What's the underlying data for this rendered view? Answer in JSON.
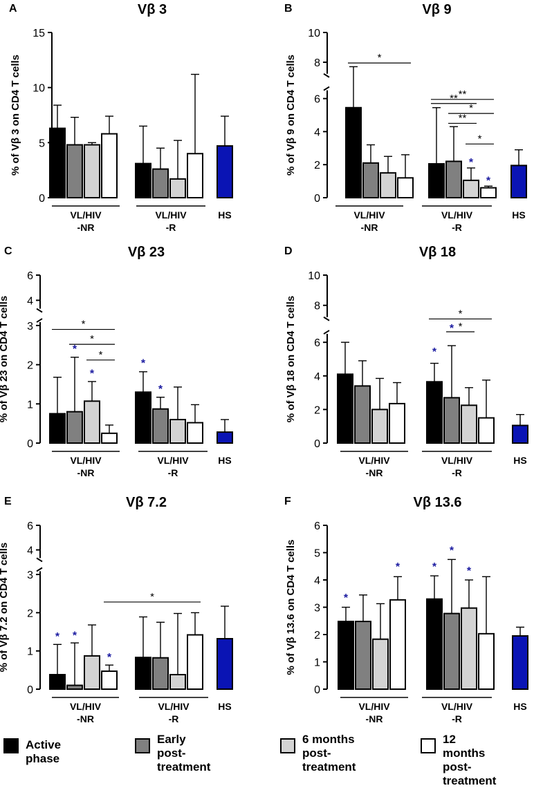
{
  "legend": {
    "items": [
      {
        "label": "Active phase",
        "color": "#000000"
      },
      {
        "label": "Early\npost-treatment",
        "color": "#808080"
      },
      {
        "label": "6 months\npost-treatment",
        "color": "#d3d3d3"
      },
      {
        "label": "12 months\npost-treatment",
        "color": "#ffffff"
      }
    ]
  },
  "colors": {
    "active": "#000000",
    "early": "#808080",
    "m6": "#d3d3d3",
    "m12": "#ffffff",
    "hs": "#0a14b4",
    "blue_star": "#1a1aa0"
  },
  "chart_data": [
    {
      "panel": "A",
      "type": "bar",
      "title": "Vβ 3",
      "ylabel": "% of Vβ 3 on CD4 T cells",
      "ylim": [
        0,
        15
      ],
      "yticks": [
        0,
        5,
        10,
        15
      ],
      "group_labels": [
        "VL/HIV\n-NR",
        "VL/HIV\n-R",
        "HS"
      ],
      "series": [
        {
          "name": "Active phase",
          "values": [
            6.3,
            3.1
          ],
          "errors": [
            8.4,
            6.5
          ]
        },
        {
          "name": "Early post-treatment",
          "values": [
            4.8,
            2.6
          ],
          "errors": [
            7.3,
            4.5
          ]
        },
        {
          "name": "6 months post-treatment",
          "values": [
            4.8,
            1.7
          ],
          "errors": [
            5.0,
            5.2
          ]
        },
        {
          "name": "12 months post-treatment",
          "values": [
            5.8,
            4.0
          ],
          "errors": [
            7.4,
            11.2
          ]
        }
      ],
      "hs": {
        "value": 4.7,
        "error": 7.4
      },
      "significance": [],
      "blue_stars": []
    },
    {
      "panel": "B",
      "type": "bar",
      "title": "Vβ 9",
      "ylabel": "% of Vβ 9 on CD4 T cells",
      "ylim": [
        0,
        10
      ],
      "yticks": [
        0,
        2,
        4,
        6,
        8,
        10
      ],
      "group_labels": [
        "VL/HIV\n-NR",
        "VL/HIV\n-R",
        "HS"
      ],
      "series": [
        {
          "name": "Active phase",
          "values": [
            5.45,
            2.05
          ],
          "errors": [
            7.7,
            5.45
          ]
        },
        {
          "name": "Early post-treatment",
          "values": [
            2.1,
            2.2
          ],
          "errors": [
            3.2,
            4.3
          ]
        },
        {
          "name": "6 months post-treatment",
          "values": [
            1.5,
            1.05
          ],
          "errors": [
            2.5,
            1.8
          ]
        },
        {
          "name": "12 months post-treatment",
          "values": [
            1.2,
            0.6
          ],
          "errors": [
            2.6,
            0.7
          ]
        }
      ],
      "hs": {
        "value": 1.95,
        "error": 2.9
      },
      "significance": [
        {
          "from": [
            0,
            0
          ],
          "to": [
            0,
            3
          ],
          "y": 7.95,
          "label": "*"
        },
        {
          "from": [
            1,
            0
          ],
          "to": [
            1,
            3
          ],
          "y": 5.95,
          "label": "**"
        },
        {
          "from": [
            1,
            0
          ],
          "to": [
            1,
            2
          ],
          "y": 5.7,
          "label": "**"
        },
        {
          "from": [
            1,
            1
          ],
          "to": [
            1,
            3
          ],
          "y": 5.1,
          "label": "*"
        },
        {
          "from": [
            1,
            1
          ],
          "to": [
            1,
            2
          ],
          "y": 4.5,
          "label": "**"
        },
        {
          "from": [
            1,
            2
          ],
          "to": [
            1,
            3
          ],
          "y": 3.25,
          "label": "*"
        }
      ],
      "blue_stars": [
        {
          "group": 1,
          "series": 2,
          "y": 2.0
        },
        {
          "group": 1,
          "series": 3,
          "y": 0.9
        }
      ]
    },
    {
      "panel": "C",
      "type": "bar",
      "title": "Vβ 23",
      "ylabel": "% of Vβ 23 on CD4 T cells",
      "ylim": [
        0,
        6
      ],
      "yticks": [
        0,
        1,
        2,
        3,
        4,
        6
      ],
      "group_labels": [
        "VL/HIV\n-NR",
        "VL/HIV\n-R",
        "HS"
      ],
      "series": [
        {
          "name": "Active phase",
          "values": [
            0.75,
            1.3
          ],
          "errors": [
            1.68,
            1.82
          ]
        },
        {
          "name": "Early post-treatment",
          "values": [
            0.8,
            0.87
          ],
          "errors": [
            2.19,
            1.17
          ]
        },
        {
          "name": "6 months post-treatment",
          "values": [
            1.07,
            0.6
          ],
          "errors": [
            1.57,
            1.43
          ]
        },
        {
          "name": "12 months post-treatment",
          "values": [
            0.25,
            0.52
          ],
          "errors": [
            0.46,
            0.98
          ]
        }
      ],
      "hs": {
        "value": 0.28,
        "error": 0.6
      },
      "significance": [
        {
          "from": [
            0,
            0
          ],
          "to": [
            0,
            3
          ],
          "y": 2.9,
          "label": "*"
        },
        {
          "from": [
            0,
            1
          ],
          "to": [
            0,
            3
          ],
          "y": 2.52,
          "label": "*"
        },
        {
          "from": [
            0,
            2
          ],
          "to": [
            0,
            3
          ],
          "y": 2.12,
          "label": "*"
        }
      ],
      "blue_stars": [
        {
          "group": 0,
          "series": 1,
          "y": 2.35
        },
        {
          "group": 0,
          "series": 2,
          "y": 1.72
        },
        {
          "group": 1,
          "series": 0,
          "y": 1.98
        },
        {
          "group": 1,
          "series": 1,
          "y": 1.32
        }
      ]
    },
    {
      "panel": "D",
      "type": "bar",
      "title": "Vβ 18",
      "ylabel": "% of Vβ 18 on CD4 T cells",
      "ylim": [
        0,
        10
      ],
      "yticks": [
        0,
        2,
        4,
        6,
        8,
        10
      ],
      "group_labels": [
        "VL/HIV\n-NR",
        "VL/HIV\n-R",
        "HS"
      ],
      "series": [
        {
          "name": "Active phase",
          "values": [
            4.1,
            3.65
          ],
          "errors": [
            6.0,
            4.75
          ]
        },
        {
          "name": "Early post-treatment",
          "values": [
            3.4,
            2.7
          ],
          "errors": [
            4.9,
            5.8
          ]
        },
        {
          "name": "6 months post-treatment",
          "values": [
            2.0,
            2.25
          ],
          "errors": [
            3.85,
            3.3
          ]
        },
        {
          "name": "12 months post-treatment",
          "values": [
            2.35,
            1.5
          ],
          "errors": [
            3.6,
            3.75
          ]
        }
      ],
      "hs": {
        "value": 1.05,
        "error": 1.7
      },
      "significance": [
        {
          "from": [
            1,
            0
          ],
          "to": [
            1,
            3
          ],
          "y": 7.1,
          "label": "*"
        },
        {
          "from": [
            1,
            1
          ],
          "to": [
            1,
            2
          ],
          "y": 6.25,
          "label": "*"
        }
      ],
      "blue_stars": [
        {
          "group": 1,
          "series": 0,
          "y": 5.3
        },
        {
          "group": 1,
          "series": 1,
          "y": 6.35
        }
      ]
    },
    {
      "panel": "E",
      "type": "bar",
      "title": "Vβ 7.2",
      "ylabel": "% of Vβ 7.2 on CD4 T cells",
      "ylim": [
        0,
        6
      ],
      "yticks": [
        0,
        1,
        2,
        3,
        4,
        6
      ],
      "group_labels": [
        "VL/HIV\n-NR",
        "VL/HIV\n-R",
        "HS"
      ],
      "series": [
        {
          "name": "Active phase",
          "values": [
            0.38,
            0.83
          ],
          "errors": [
            1.17,
            1.89
          ]
        },
        {
          "name": "Early post-treatment",
          "values": [
            0.1,
            0.82
          ],
          "errors": [
            1.21,
            1.75
          ]
        },
        {
          "name": "6 months post-treatment",
          "values": [
            0.87,
            0.38
          ],
          "errors": [
            1.68,
            1.98
          ]
        },
        {
          "name": "12 months post-treatment",
          "values": [
            0.47,
            1.42
          ],
          "errors": [
            0.63,
            2.0
          ]
        }
      ],
      "hs": {
        "value": 1.32,
        "error": 2.17
      },
      "significance": [
        {
          "from": [
            0,
            3
          ],
          "to": [
            1,
            3
          ],
          "y": 2.28,
          "label": "*"
        }
      ],
      "blue_stars": [
        {
          "group": 0,
          "series": 0,
          "y": 1.32
        },
        {
          "group": 0,
          "series": 1,
          "y": 1.35
        },
        {
          "group": 0,
          "series": 3,
          "y": 0.78
        }
      ]
    },
    {
      "panel": "F",
      "type": "bar",
      "title": "Vβ 13.6",
      "ylabel": "% of Vβ 13.6 on CD4 T cells",
      "ylim": [
        0,
        6
      ],
      "yticks": [
        0,
        1,
        2,
        3,
        4,
        5,
        6
      ],
      "group_labels": [
        "VL/HIV\n-NR",
        "VL/HIV\n-R",
        "HS"
      ],
      "series": [
        {
          "name": "Active phase",
          "values": [
            2.48,
            3.3
          ],
          "errors": [
            3.0,
            4.15
          ]
        },
        {
          "name": "Early post-treatment",
          "values": [
            2.48,
            2.77
          ],
          "errors": [
            3.45,
            4.75
          ]
        },
        {
          "name": "6 months post-treatment",
          "values": [
            1.83,
            2.97
          ],
          "errors": [
            3.13,
            4.0
          ]
        },
        {
          "name": "12 months post-treatment",
          "values": [
            3.27,
            2.03
          ],
          "errors": [
            4.12,
            4.12
          ]
        }
      ],
      "hs": {
        "value": 1.95,
        "error": 2.27
      },
      "significance": [],
      "blue_stars": [
        {
          "group": 0,
          "series": 0,
          "y": 3.27
        },
        {
          "group": 0,
          "series": 3,
          "y": 4.4
        },
        {
          "group": 1,
          "series": 0,
          "y": 4.4
        },
        {
          "group": 1,
          "series": 1,
          "y": 5.0
        },
        {
          "group": 1,
          "series": 2,
          "y": 4.25
        }
      ]
    }
  ]
}
